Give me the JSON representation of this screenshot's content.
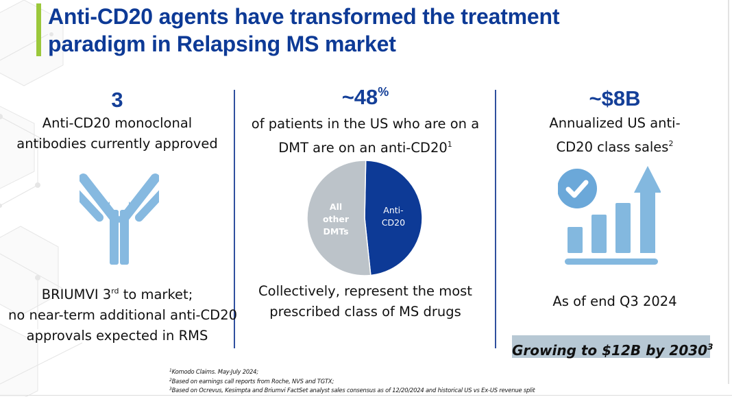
{
  "slide": {
    "title_lines": [
      "Anti-CD20 agents have transformed the treatment",
      "paradigm in Relapsing MS market"
    ],
    "accent_color": "#9bc83b",
    "title_color": "#0d3a96"
  },
  "columns": [
    {
      "stat": "3",
      "description_lines": [
        "Anti-CD20 monoclonal",
        "antibodies currently approved"
      ],
      "icon": "antibody-icon",
      "bottom_line1_pre": "BRIUMVI 3",
      "bottom_line1_sup": "rd",
      "bottom_line1_post": " to market;",
      "bottom_line2": "no near-term additional anti-CD20",
      "bottom_line3": "approvals expected in RMS"
    },
    {
      "stat_main": "~48",
      "stat_sup": "%",
      "description_line1": "of patients in the US who are on a",
      "description_line2": "DMT are on an anti-CD20",
      "description_ref": "1",
      "bottom_lines": [
        "Collectively, represent the most",
        "prescribed class of MS drugs"
      ]
    },
    {
      "stat": "~$8B",
      "description_line1": "Annualized US anti-",
      "description_line2": "CD20 class sales",
      "description_ref": "2",
      "icon": "growth-chart-icon",
      "bottom_line": "As of end Q3 2024",
      "highlight_text": "Growing to $12B by 2030",
      "highlight_ref": "3",
      "highlight_color": "#b7c8d4"
    }
  ],
  "chart_data": {
    "type": "pie",
    "title": "",
    "categories": [
      "Anti-CD20",
      "All other DMTs"
    ],
    "values": [
      48,
      52
    ],
    "labels": [
      [
        "Anti-",
        "CD20"
      ],
      [
        "All",
        "other",
        "DMTs"
      ]
    ],
    "colors": [
      "#0d3a96",
      "#bcc3c9"
    ]
  },
  "footnotes": [
    {
      "ref": "1",
      "text": "Komodo Claims. May-July 2024;"
    },
    {
      "ref": "2",
      "text": "Based on earnings call reports from Roche, NVS and TGTX;"
    },
    {
      "ref": "3",
      "text": "Based on Ocrevus, Kesimpta and Briumvi FactSet analyst sales consensus as of 12/20/2024 and historical US vs Ex-US revenue split"
    }
  ]
}
